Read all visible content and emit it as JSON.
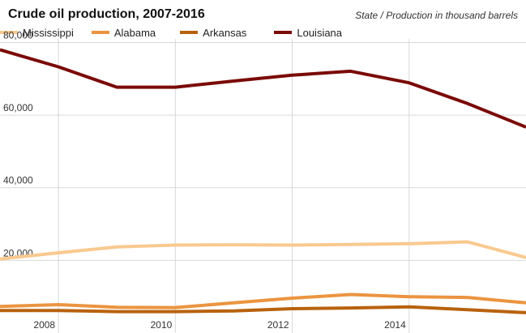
{
  "title": "Crude oil production, 2007-2016",
  "subtitle": "State / Production in thousand barrels",
  "chart_data": {
    "type": "line",
    "title": "Crude oil production, 2007-2016",
    "subtitle": "State / Production in thousand barrels",
    "x": [
      2007,
      2008,
      2009,
      2010,
      2011,
      2012,
      2013,
      2014,
      2015,
      2016
    ],
    "xticks": [
      "2008",
      "2010",
      "2012",
      "2014"
    ],
    "xtick_values": [
      2008,
      2010,
      2012,
      2014
    ],
    "yticks": [
      "20,000",
      "40,000",
      "60,000",
      "80,000"
    ],
    "ytick_values": [
      20000,
      40000,
      60000,
      80000
    ],
    "xlim": [
      2007,
      2016
    ],
    "ylim": [
      0,
      81000
    ],
    "grid": true,
    "legend_position": "top-left",
    "series": [
      {
        "name": "Mississippi",
        "color": "#f9c98f",
        "values": [
          20400,
          22100,
          23700,
          24200,
          24300,
          24200,
          24400,
          24600,
          25100,
          20800
        ]
      },
      {
        "name": "Alabama",
        "color": "#eb9440",
        "values": [
          7300,
          7800,
          7100,
          7000,
          8300,
          9600,
          10600,
          10000,
          9800,
          8300
        ]
      },
      {
        "name": "Arkansas",
        "color": "#b8620e",
        "values": [
          6200,
          6200,
          5900,
          5900,
          6100,
          6700,
          6900,
          7200,
          6400,
          5600
        ]
      },
      {
        "name": "Louisiana",
        "color": "#7a0a07",
        "values": [
          78000,
          73300,
          67700,
          67700,
          69400,
          71000,
          72100,
          68900,
          63200,
          56700
        ]
      }
    ]
  }
}
